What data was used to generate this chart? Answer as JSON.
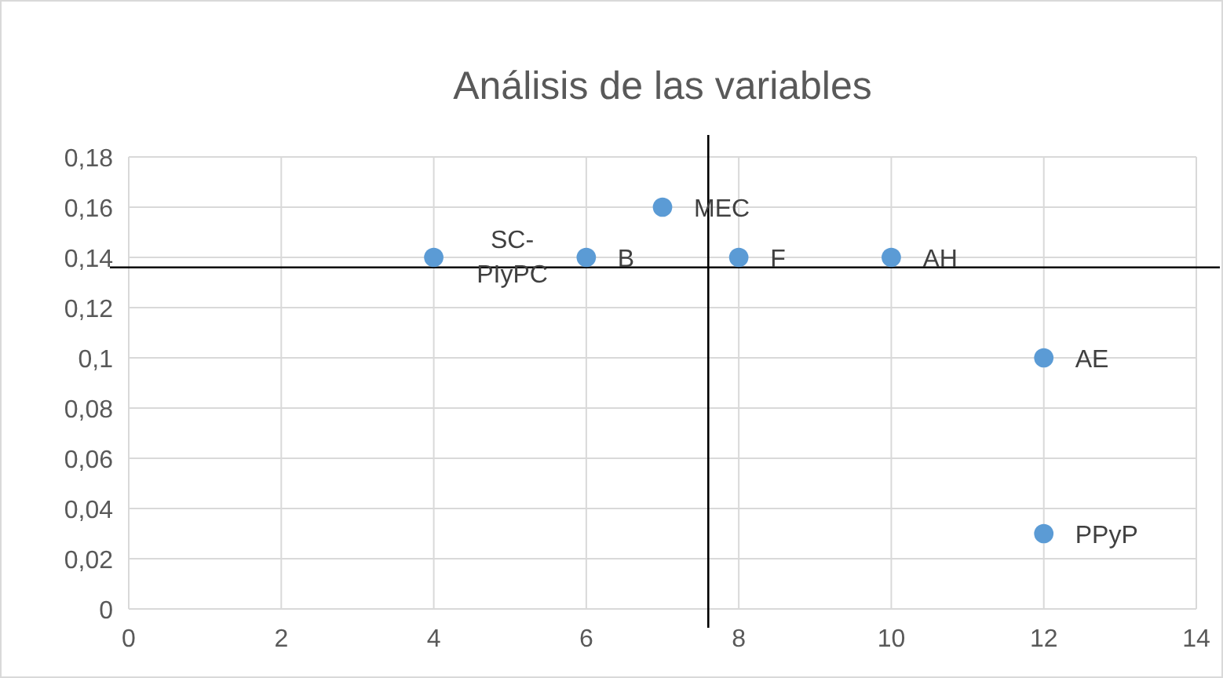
{
  "chart_data": {
    "type": "scatter",
    "title": "Análisis de las variables",
    "x": [
      4,
      6,
      7,
      8,
      10,
      12,
      12
    ],
    "values": [
      0.14,
      0.14,
      0.16,
      0.14,
      0.14,
      0.1,
      0.03
    ],
    "color": "#5b9bd5",
    "marker": "circle",
    "grid": true,
    "xlim": [
      0,
      14
    ],
    "xticks": [
      0,
      2,
      4,
      6,
      8,
      10,
      12,
      14
    ],
    "ylim": [
      0,
      0.18
    ],
    "yticks": [
      {
        "value": 0,
        "label": "0"
      },
      {
        "value": 0.02,
        "label": "0,02"
      },
      {
        "value": 0.04,
        "label": "0,04"
      },
      {
        "value": 0.06,
        "label": "0,06"
      },
      {
        "value": 0.08,
        "label": "0,08"
      },
      {
        "value": 0.1,
        "label": "0,1"
      },
      {
        "value": 0.12,
        "label": "0,12"
      },
      {
        "value": 0.14,
        "label": "0,14"
      },
      {
        "value": 0.16,
        "label": "0,16"
      },
      {
        "value": 0.18,
        "label": "0,18"
      }
    ],
    "ref_lines": [
      {
        "axis": "x",
        "value": 7.6,
        "color": "#000000"
      },
      {
        "axis": "y",
        "value": 0.136,
        "color": "#000000"
      }
    ],
    "annotations": [
      {
        "text": "SC-PIyPC",
        "x": 4,
        "y": 0.14
      },
      {
        "text": "B",
        "x": 6,
        "y": 0.14
      },
      {
        "text": "MEC",
        "x": 7,
        "y": 0.16
      },
      {
        "text": "F",
        "x": 8,
        "y": 0.14
      },
      {
        "text": "AH",
        "x": 10,
        "y": 0.14
      },
      {
        "text": "AE",
        "x": 12,
        "y": 0.1
      },
      {
        "text": "PPyP",
        "x": 12,
        "y": 0.03
      }
    ]
  }
}
